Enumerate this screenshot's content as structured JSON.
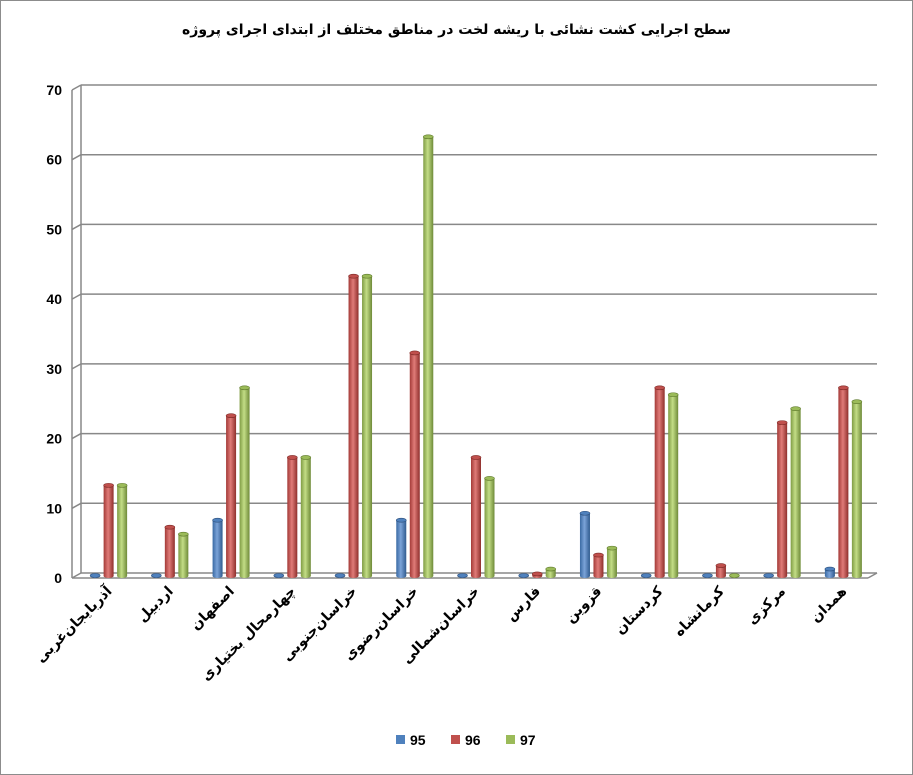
{
  "chart_data": {
    "type": "bar",
    "title": "سطح اجرایی کشت نشائی با ریشه لخت در مناطق مختلف از ابتدای اجرای پروژه",
    "xlabel": "",
    "ylabel": "",
    "ylim": [
      0,
      70
    ],
    "yticks": [
      0,
      10,
      20,
      30,
      40,
      50,
      60,
      70
    ],
    "grid": true,
    "legend_position": "bottom",
    "categories": [
      "آذربایجان‌غربی",
      "اردبیل",
      "اصفهان",
      "چهارمحال بختیاری",
      "خراسان‌جنوبی",
      "خراسان‌رضوی",
      "خراسان‌شمالی",
      "فارس",
      "قزوین",
      "کردستان",
      "کرمانشاه",
      "مرکزی",
      "همدان"
    ],
    "series": [
      {
        "name": "95",
        "color": "#4f81bd",
        "values": [
          0,
          0,
          8,
          0,
          0,
          8,
          0,
          0,
          9,
          0,
          0,
          0,
          1
        ]
      },
      {
        "name": "96",
        "color": "#c0504d",
        "values": [
          13,
          7,
          23,
          17,
          43,
          32,
          17,
          0.3,
          3,
          27,
          1.5,
          22,
          27
        ]
      },
      {
        "name": "97",
        "color": "#9bbb59",
        "values": [
          13,
          6,
          27,
          17,
          43,
          63,
          14,
          1,
          4,
          26,
          0,
          24,
          25
        ]
      }
    ]
  }
}
